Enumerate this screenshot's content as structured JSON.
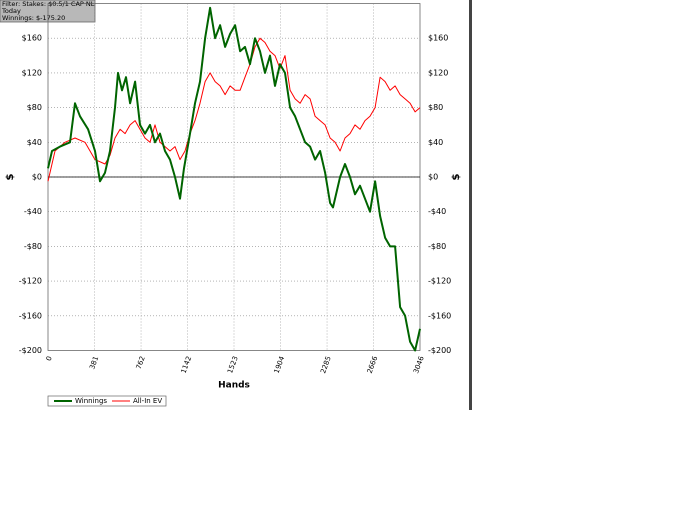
{
  "chart_data": {
    "type": "line",
    "annotations": [
      "Filter: Stakes: $0.5/1 CAP NL",
      "Today",
      "Winnings: $-175.20"
    ],
    "xlabel": "Hands",
    "ylabel": "$",
    "xlim": [
      0,
      3046
    ],
    "xticks": [
      0,
      381,
      762,
      1142,
      1523,
      1904,
      2285,
      2666,
      3046
    ],
    "ylim": [
      -200,
      200
    ],
    "yticks": [
      {
        "value": -200,
        "label": "-$200"
      },
      {
        "value": -160,
        "label": "-$160"
      },
      {
        "value": -120,
        "label": "-$120"
      },
      {
        "value": -80,
        "label": "-$80"
      },
      {
        "value": -40,
        "label": "-$40"
      },
      {
        "value": 0,
        "label": "$0"
      },
      {
        "value": 40,
        "label": "$40"
      },
      {
        "value": 80,
        "label": "$80"
      },
      {
        "value": 120,
        "label": "$120"
      },
      {
        "value": 160,
        "label": "$160"
      }
    ],
    "grid": true,
    "series": [
      {
        "name": "Winnings",
        "color": "#006400",
        "x": [
          0,
          33,
          98,
          180,
          221,
          262,
          328,
          385,
          426,
          467,
          508,
          549,
          573,
          606,
          639,
          672,
          713,
          753,
          794,
          835,
          876,
          917,
          958,
          999,
          1040,
          1081,
          1114,
          1163,
          1204,
          1245,
          1286,
          1327,
          1368,
          1409,
          1450,
          1491,
          1532,
          1573,
          1613,
          1654,
          1695,
          1736,
          1777,
          1818,
          1859,
          1900,
          1941,
          1982,
          2023,
          2064,
          2105,
          2146,
          2187,
          2228,
          2269,
          2310,
          2334,
          2392,
          2432,
          2473,
          2514,
          2555,
          2596,
          2637,
          2678,
          2719,
          2760,
          2801,
          2842,
          2883,
          2924,
          2965,
          3006,
          3046
        ],
        "values": [
          10,
          30,
          35,
          40,
          85,
          70,
          55,
          30,
          -5,
          5,
          30,
          80,
          120,
          100,
          115,
          85,
          110,
          60,
          50,
          60,
          40,
          50,
          30,
          20,
          0,
          -25,
          10,
          50,
          85,
          110,
          160,
          195,
          160,
          175,
          150,
          165,
          175,
          145,
          150,
          130,
          160,
          145,
          120,
          140,
          105,
          130,
          120,
          80,
          70,
          55,
          40,
          35,
          20,
          30,
          5,
          -30,
          -35,
          0,
          15,
          0,
          -20,
          -10,
          -25,
          -40,
          -5,
          -45,
          -70,
          -80,
          -80,
          -150,
          -160,
          -190,
          -200,
          -175
        ]
      },
      {
        "name": "All-In EV",
        "color": "#ff0000",
        "x": [
          0,
          57,
          139,
          221,
          303,
          385,
          467,
          508,
          549,
          590,
          631,
          672,
          713,
          753,
          794,
          835,
          876,
          917,
          958,
          999,
          1040,
          1081,
          1122,
          1163,
          1204,
          1245,
          1286,
          1327,
          1368,
          1409,
          1450,
          1491,
          1532,
          1573,
          1613,
          1654,
          1695,
          1736,
          1777,
          1818,
          1859,
          1900,
          1941,
          1982,
          2023,
          2064,
          2105,
          2146,
          2187,
          2228,
          2269,
          2310,
          2351,
          2392,
          2432,
          2473,
          2514,
          2555,
          2596,
          2637,
          2678,
          2719,
          2760,
          2801,
          2842,
          2883,
          2924,
          2965,
          3006,
          3046
        ],
        "values": [
          -5,
          30,
          40,
          45,
          40,
          20,
          15,
          25,
          45,
          55,
          50,
          60,
          65,
          55,
          45,
          40,
          60,
          40,
          35,
          30,
          35,
          20,
          30,
          50,
          65,
          85,
          110,
          120,
          110,
          105,
          95,
          105,
          100,
          100,
          115,
          130,
          150,
          160,
          155,
          145,
          140,
          125,
          140,
          100,
          90,
          85,
          95,
          90,
          70,
          65,
          60,
          45,
          40,
          30,
          45,
          50,
          60,
          55,
          65,
          70,
          80,
          115,
          110,
          100,
          105,
          95,
          90,
          85,
          75,
          80
        ]
      }
    ]
  }
}
